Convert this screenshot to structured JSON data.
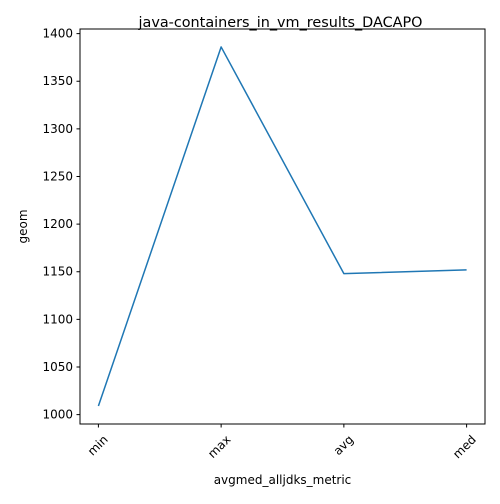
{
  "chart_data": {
    "type": "line",
    "title": "java-containers_in_vm_results_DACAPO",
    "xlabel": "avgmed_alljdks_metric",
    "ylabel": "geom",
    "categories": [
      "min",
      "max",
      "avg",
      "med"
    ],
    "series": [
      {
        "values": [
          1009,
          1386,
          1148,
          1152
        ],
        "color": "#1f77b4"
      }
    ],
    "yticks": [
      1000,
      1050,
      1100,
      1150,
      1200,
      1250,
      1300,
      1350,
      1400
    ],
    "ylim": [
      990.15,
      1404.85
    ],
    "grid": false,
    "legend": "none"
  }
}
